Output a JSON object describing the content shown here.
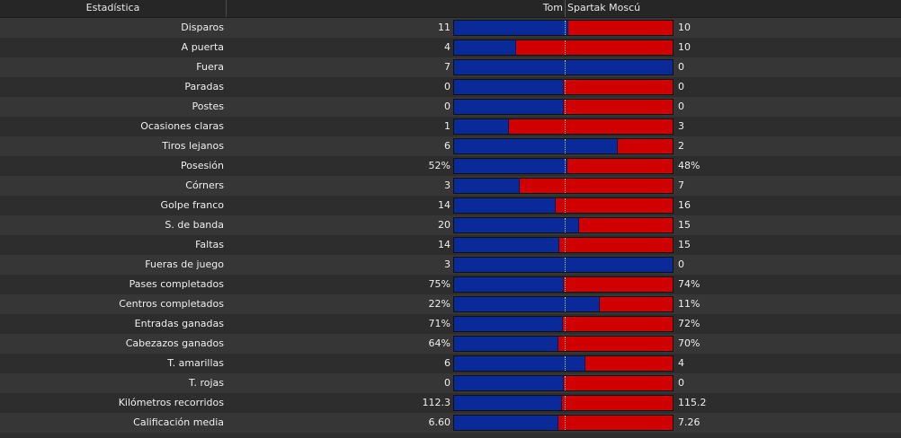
{
  "header": {
    "stat_label": "Estadística",
    "home_team": "Tom",
    "away_team": "Spartak Moscú"
  },
  "colors": {
    "home": "#0a2a99",
    "away": "#d10000"
  },
  "stats": [
    {
      "label": "Disparos",
      "home": "11",
      "away": "10",
      "home_share": 0.524
    },
    {
      "label": "A puerta",
      "home": "4",
      "away": "10",
      "home_share": 0.286
    },
    {
      "label": "Fuera",
      "home": "7",
      "away": "0",
      "home_share": 1.0
    },
    {
      "label": "Paradas",
      "home": "0",
      "away": "0",
      "home_share": 0.5
    },
    {
      "label": "Postes",
      "home": "0",
      "away": "0",
      "home_share": 0.5
    },
    {
      "label": "Ocasiones claras",
      "home": "1",
      "away": "3",
      "home_share": 0.25
    },
    {
      "label": "Tiros lejanos",
      "home": "6",
      "away": "2",
      "home_share": 0.75
    },
    {
      "label": "Posesión",
      "home": "52%",
      "away": "48%",
      "home_share": 0.52
    },
    {
      "label": "Córners",
      "home": "3",
      "away": "7",
      "home_share": 0.3
    },
    {
      "label": "Golpe franco",
      "home": "14",
      "away": "16",
      "home_share": 0.467
    },
    {
      "label": "S. de banda",
      "home": "20",
      "away": "15",
      "home_share": 0.571
    },
    {
      "label": "Faltas",
      "home": "14",
      "away": "15",
      "home_share": 0.483
    },
    {
      "label": "Fueras de juego",
      "home": "3",
      "away": "0",
      "home_share": 1.0
    },
    {
      "label": "Pases completados",
      "home": "75%",
      "away": "74%",
      "home_share": 0.503
    },
    {
      "label": "Centros completados",
      "home": "22%",
      "away": "11%",
      "home_share": 0.667
    },
    {
      "label": "Entradas ganadas",
      "home": "71%",
      "away": "72%",
      "home_share": 0.497
    },
    {
      "label": "Cabezazos ganados",
      "home": "64%",
      "away": "70%",
      "home_share": 0.478
    },
    {
      "label": "T. amarillas",
      "home": "6",
      "away": "4",
      "home_share": 0.6
    },
    {
      "label": "T. rojas",
      "home": "0",
      "away": "0",
      "home_share": 0.5
    },
    {
      "label": "Kilómetros recorridos",
      "home": "112.3",
      "away": "115.2",
      "home_share": 0.494
    },
    {
      "label": "Calificación media",
      "home": "6.60",
      "away": "7.26",
      "home_share": 0.476
    }
  ]
}
